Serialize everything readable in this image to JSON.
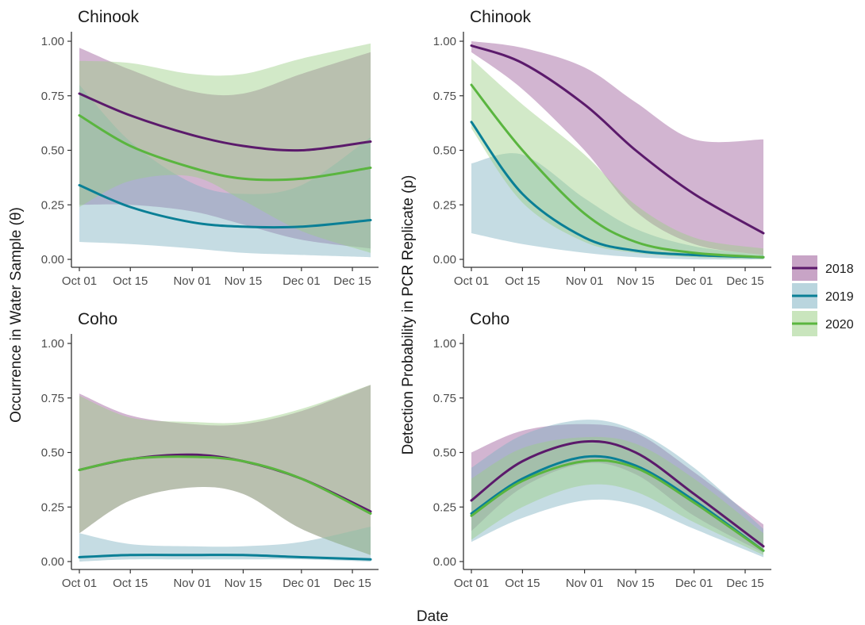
{
  "figure": {
    "xlabel": "Date",
    "ylabel_left": "Occurrence in Water Sample (θ)",
    "ylabel_right": "Detection Probability in PCR Replicate (p)"
  },
  "colors": {
    "2018": "#5b1a6b",
    "2019": "#0a7f96",
    "2020": "#5ab53f"
  },
  "fill_colors": {
    "2018": "#9b5a98",
    "2019": "#7fb2c2",
    "2020": "#9ccf86"
  },
  "legend": {
    "position": "right",
    "items": [
      {
        "label": "2018",
        "key": "2018"
      },
      {
        "label": "2019",
        "key": "2019"
      },
      {
        "label": "2020",
        "key": "2020"
      }
    ]
  },
  "chart_data": [
    {
      "type": "line",
      "title": "Chinook",
      "xlabel": "Date",
      "ylabel": "Occurrence in Water Sample (θ)",
      "xlim": [
        "2019-10-01",
        "2019-12-20"
      ],
      "ylim": [
        0,
        1
      ],
      "x_ticks": [
        "Oct 01",
        "Oct 15",
        "Nov 01",
        "Nov 15",
        "Dec 01",
        "Dec 15"
      ],
      "y_ticks": [
        "0.00",
        "0.25",
        "0.50",
        "0.75",
        "1.00"
      ],
      "x": [
        "2019-10-01",
        "2019-10-15",
        "2019-11-01",
        "2019-11-15",
        "2019-12-01",
        "2019-12-20"
      ],
      "series": [
        {
          "name": "2018",
          "values": [
            0.76,
            0.66,
            0.57,
            0.52,
            0.5,
            0.54
          ],
          "lower": [
            0.25,
            0.25,
            0.22,
            0.16,
            0.09,
            0.05
          ],
          "upper": [
            0.97,
            0.87,
            0.77,
            0.76,
            0.85,
            0.95
          ]
        },
        {
          "name": "2019",
          "values": [
            0.34,
            0.24,
            0.17,
            0.15,
            0.15,
            0.18
          ],
          "lower": [
            0.08,
            0.07,
            0.05,
            0.03,
            0.02,
            0.01
          ],
          "upper": [
            0.8,
            0.54,
            0.35,
            0.3,
            0.34,
            0.56
          ]
        },
        {
          "name": "2020",
          "values": [
            0.66,
            0.52,
            0.42,
            0.37,
            0.37,
            0.42
          ],
          "lower": [
            0.24,
            0.36,
            0.38,
            0.27,
            0.13,
            0.03
          ],
          "upper": [
            0.91,
            0.9,
            0.85,
            0.85,
            0.92,
            0.99
          ]
        }
      ]
    },
    {
      "type": "line",
      "title": "Chinook",
      "xlabel": "Date",
      "ylabel": "Detection Probability in PCR Replicate (p)",
      "xlim": [
        "2019-10-01",
        "2019-12-20"
      ],
      "ylim": [
        0,
        1
      ],
      "x_ticks": [
        "Oct 01",
        "Oct 15",
        "Nov 01",
        "Nov 15",
        "Dec 01",
        "Dec 15"
      ],
      "y_ticks": [
        "0.00",
        "0.25",
        "0.50",
        "0.75",
        "1.00"
      ],
      "x": [
        "2019-10-01",
        "2019-10-15",
        "2019-11-01",
        "2019-11-15",
        "2019-12-01",
        "2019-12-20"
      ],
      "series": [
        {
          "name": "2018",
          "values": [
            0.98,
            0.9,
            0.71,
            0.5,
            0.3,
            0.12
          ],
          "lower": [
            0.95,
            0.78,
            0.5,
            0.22,
            0.07,
            0.02
          ],
          "upper": [
            1.0,
            0.97,
            0.88,
            0.72,
            0.55,
            0.55
          ]
        },
        {
          "name": "2019",
          "values": [
            0.63,
            0.3,
            0.1,
            0.04,
            0.02,
            0.01
          ],
          "lower": [
            0.12,
            0.07,
            0.03,
            0.01,
            0.0,
            0.0
          ],
          "upper": [
            0.44,
            0.48,
            0.28,
            0.14,
            0.06,
            0.02
          ]
        },
        {
          "name": "2020",
          "values": [
            0.8,
            0.5,
            0.21,
            0.08,
            0.03,
            0.01
          ],
          "lower": [
            0.6,
            0.26,
            0.08,
            0.03,
            0.01,
            0.0
          ],
          "upper": [
            0.92,
            0.71,
            0.48,
            0.25,
            0.1,
            0.05
          ]
        }
      ]
    },
    {
      "type": "line",
      "title": "Coho",
      "xlabel": "Date",
      "ylabel": "Occurrence in Water Sample (θ)",
      "xlim": [
        "2019-10-01",
        "2019-12-20"
      ],
      "ylim": [
        0,
        1
      ],
      "x_ticks": [
        "Oct 01",
        "Oct 15",
        "Nov 01",
        "Nov 15",
        "Dec 01",
        "Dec 15"
      ],
      "y_ticks": [
        "0.00",
        "0.25",
        "0.50",
        "0.75",
        "1.00"
      ],
      "x": [
        "2019-10-01",
        "2019-10-15",
        "2019-11-01",
        "2019-11-15",
        "2019-12-01",
        "2019-12-20"
      ],
      "series": [
        {
          "name": "2018",
          "values": [
            0.42,
            0.47,
            0.49,
            0.46,
            0.38,
            0.23
          ],
          "lower": [
            0.13,
            0.28,
            0.34,
            0.31,
            0.15,
            0.03
          ],
          "upper": [
            0.77,
            0.67,
            0.63,
            0.63,
            0.69,
            0.81
          ]
        },
        {
          "name": "2019",
          "values": [
            0.02,
            0.03,
            0.03,
            0.03,
            0.02,
            0.01
          ],
          "lower": [
            0.0,
            0.01,
            0.01,
            0.01,
            0.01,
            0.0
          ],
          "upper": [
            0.13,
            0.08,
            0.07,
            0.07,
            0.09,
            0.16
          ]
        },
        {
          "name": "2020",
          "values": [
            0.42,
            0.47,
            0.48,
            0.46,
            0.38,
            0.22
          ],
          "lower": [
            0.13,
            0.28,
            0.34,
            0.31,
            0.15,
            0.03
          ],
          "upper": [
            0.76,
            0.66,
            0.64,
            0.64,
            0.7,
            0.81
          ]
        }
      ]
    },
    {
      "type": "line",
      "title": "Coho",
      "xlabel": "Date",
      "ylabel": "Detection Probability in PCR Replicate (p)",
      "xlim": [
        "2019-10-01",
        "2019-12-20"
      ],
      "ylim": [
        0,
        1
      ],
      "x_ticks": [
        "Oct 01",
        "Oct 15",
        "Nov 01",
        "Nov 15",
        "Dec 01",
        "Dec 15"
      ],
      "y_ticks": [
        "0.00",
        "0.25",
        "0.50",
        "0.75",
        "1.00"
      ],
      "x": [
        "2019-10-01",
        "2019-10-15",
        "2019-11-01",
        "2019-11-15",
        "2019-12-01",
        "2019-12-20"
      ],
      "series": [
        {
          "name": "2018",
          "values": [
            0.28,
            0.46,
            0.55,
            0.5,
            0.31,
            0.07
          ],
          "lower": [
            0.14,
            0.34,
            0.45,
            0.4,
            0.21,
            0.04
          ],
          "upper": [
            0.5,
            0.6,
            0.63,
            0.59,
            0.41,
            0.17
          ]
        },
        {
          "name": "2019",
          "values": [
            0.22,
            0.38,
            0.48,
            0.44,
            0.28,
            0.05
          ],
          "lower": [
            0.09,
            0.2,
            0.28,
            0.26,
            0.15,
            0.02
          ],
          "upper": [
            0.43,
            0.58,
            0.65,
            0.6,
            0.43,
            0.15
          ]
        },
        {
          "name": "2020",
          "values": [
            0.21,
            0.37,
            0.46,
            0.43,
            0.27,
            0.05
          ],
          "lower": [
            0.1,
            0.25,
            0.35,
            0.32,
            0.18,
            0.03
          ],
          "upper": [
            0.38,
            0.52,
            0.57,
            0.54,
            0.38,
            0.13
          ]
        }
      ]
    }
  ]
}
